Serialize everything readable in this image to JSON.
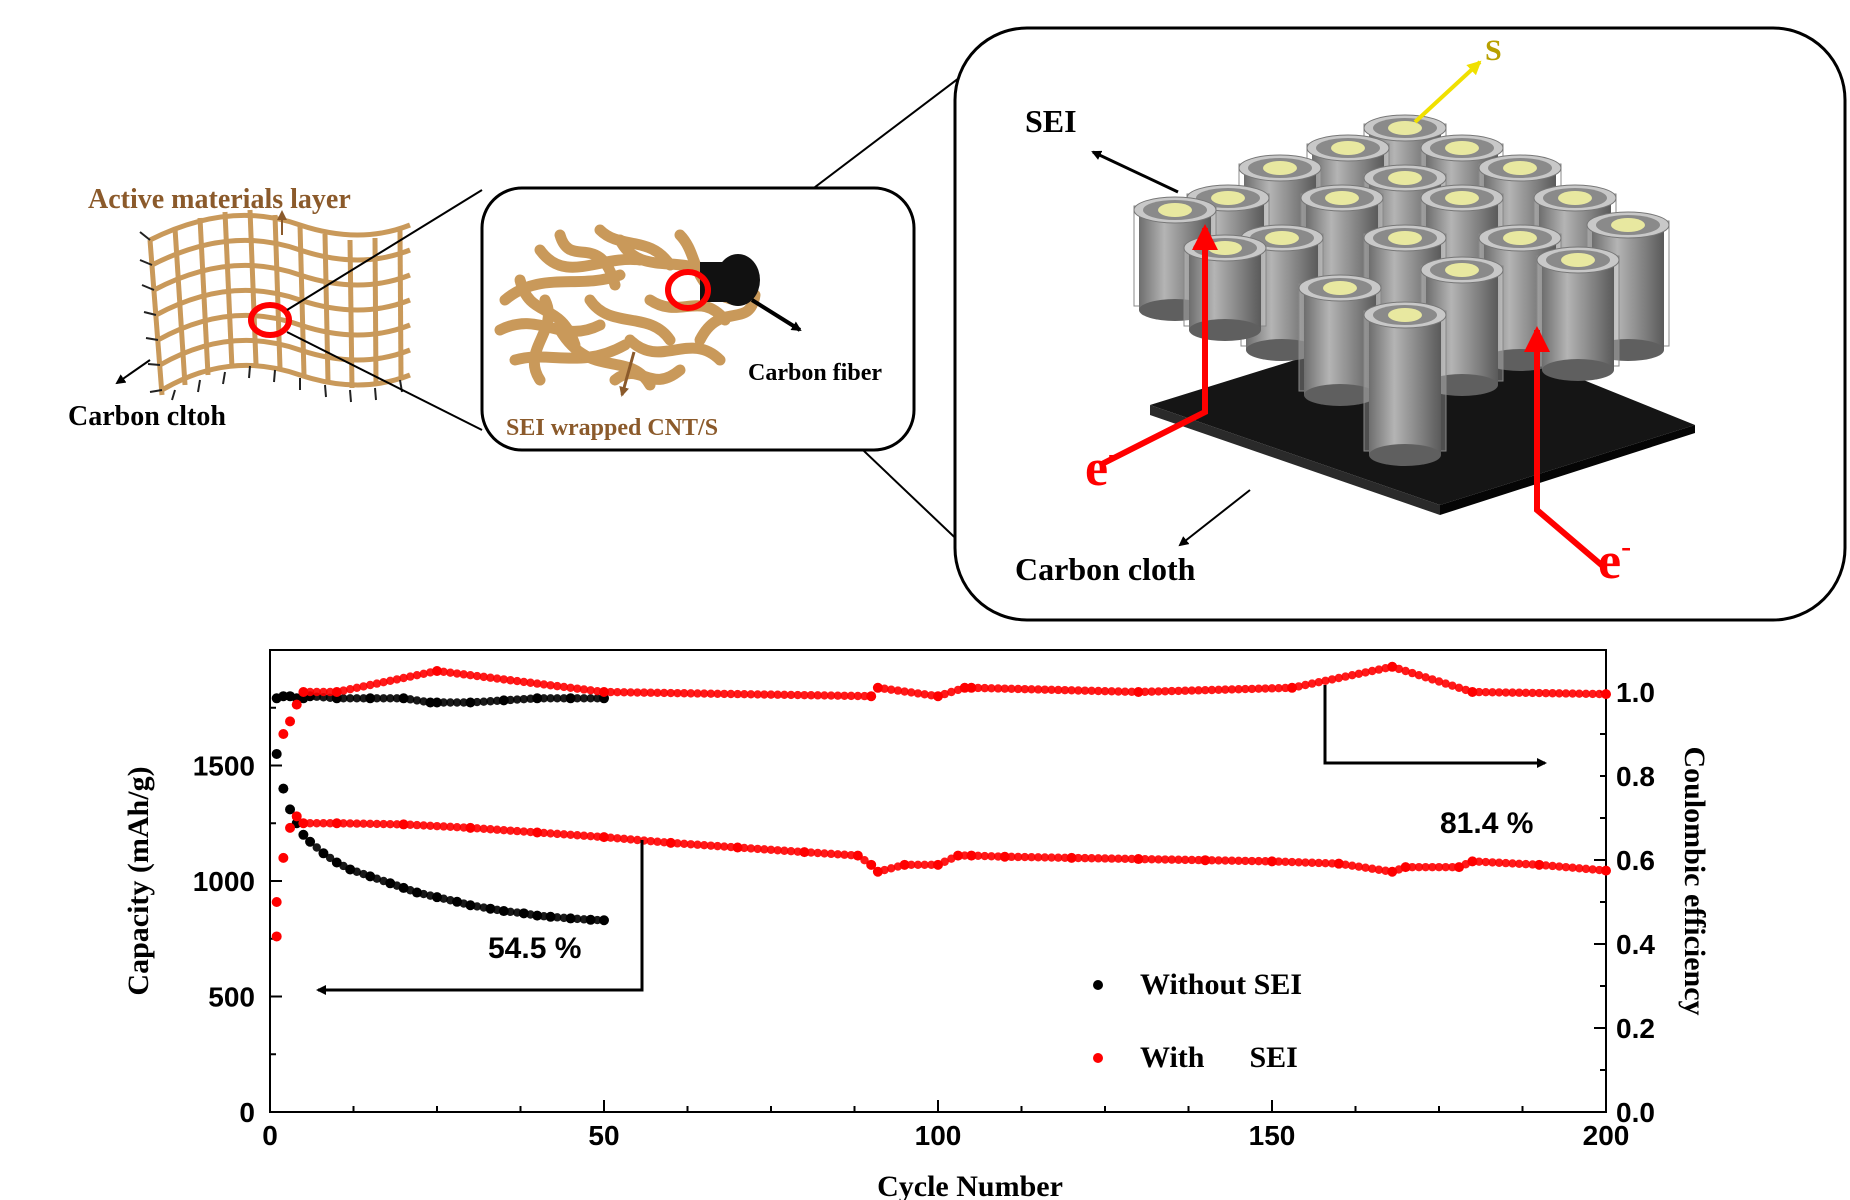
{
  "schematic": {
    "cloth_panel": {
      "active_layer_label": "Active materials layer",
      "carbon_cloth_label": "Carbon cltoh"
    },
    "fiber_panel": {
      "sei_cnt_label": "SEI wrapped CNT/S",
      "carbon_fiber_label": "Carbon fiber"
    },
    "array_panel": {
      "sulfur_label": "S",
      "sei_label": "SEI",
      "electron_label": "e",
      "electron_sup": "-",
      "carbon_cloth_label": "Carbon cloth"
    },
    "colors": {
      "fiber_brown": "#c9995a",
      "highlight_red": "#ff0000",
      "sulfur_yellow": "#e8e8a0",
      "pillar_gray": "#9a9a9a",
      "base_black": "#1a1a1a"
    }
  },
  "chart_data": {
    "type": "scatter",
    "xlabel": "Cycle Number",
    "ylabel": "Capacity (mAh/g)",
    "y2label": "Coulombic efficiency",
    "xlim": [
      0,
      200
    ],
    "ylim": [
      0,
      2000
    ],
    "y2lim": [
      0,
      1.1
    ],
    "xticks": [
      0,
      50,
      100,
      150,
      200
    ],
    "yticks": [
      0,
      500,
      1000,
      1500
    ],
    "y2ticks": [
      0.0,
      0.2,
      0.4,
      0.6,
      0.8,
      1.0
    ],
    "xtick_labels": [
      "0",
      "50",
      "100",
      "150",
      "200"
    ],
    "ytick_labels": [
      "0",
      "500",
      "1000",
      "1500"
    ],
    "y2tick_labels": [
      "0.0",
      "0.2",
      "0.4",
      "0.6",
      "0.8",
      "1.0"
    ],
    "legend": {
      "position": "bottom-center",
      "entries": [
        {
          "name": "Without SEI",
          "color": "#000000"
        },
        {
          "name": "With      SEI",
          "color": "#ff0000"
        }
      ]
    },
    "annotations": {
      "retention_without": "54.5 %",
      "retention_with": "81.4 %"
    },
    "series": [
      {
        "name": "Without SEI capacity",
        "axis": "left",
        "color": "#000000",
        "x": [
          1,
          2,
          3,
          4,
          5,
          6,
          8,
          10,
          12,
          15,
          18,
          20,
          22,
          25,
          28,
          30,
          33,
          35,
          38,
          40,
          42,
          45,
          48,
          50
        ],
        "y": [
          1550,
          1400,
          1310,
          1250,
          1200,
          1170,
          1120,
          1080,
          1050,
          1020,
          990,
          970,
          950,
          930,
          910,
          895,
          880,
          870,
          860,
          850,
          845,
          838,
          832,
          830
        ]
      },
      {
        "name": "With SEI capacity",
        "axis": "left",
        "color": "#ff0000",
        "x": [
          1,
          2,
          3,
          4,
          5,
          10,
          20,
          30,
          40,
          50,
          60,
          70,
          80,
          88,
          90,
          91,
          95,
          100,
          103,
          105,
          110,
          120,
          130,
          140,
          150,
          160,
          168,
          170,
          178,
          180,
          190,
          200
        ],
        "y": [
          760,
          1100,
          1230,
          1280,
          1250,
          1250,
          1245,
          1230,
          1210,
          1190,
          1165,
          1145,
          1125,
          1110,
          1070,
          1040,
          1070,
          1070,
          1110,
          1110,
          1105,
          1100,
          1095,
          1090,
          1085,
          1075,
          1040,
          1060,
          1060,
          1085,
          1070,
          1045
        ]
      },
      {
        "name": "Without SEI efficiency",
        "axis": "right",
        "color": "#000000",
        "x": [
          1,
          2,
          3,
          4,
          5,
          6,
          10,
          15,
          20,
          24,
          25,
          30,
          35,
          40,
          45,
          50
        ],
        "y": [
          0.985,
          0.99,
          0.99,
          0.985,
          0.985,
          0.99,
          0.985,
          0.985,
          0.985,
          0.975,
          0.975,
          0.975,
          0.98,
          0.985,
          0.985,
          0.985
        ]
      },
      {
        "name": "With SEI efficiency",
        "axis": "right",
        "color": "#ff0000",
        "x": [
          1,
          2,
          3,
          4,
          5,
          10,
          25,
          50,
          90,
          91,
          100,
          104,
          105,
          130,
          153,
          168,
          180,
          200
        ],
        "y": [
          0.5,
          0.9,
          0.93,
          0.97,
          1.0,
          1.0,
          1.05,
          1.0,
          0.99,
          1.01,
          0.99,
          1.01,
          1.01,
          1.0,
          1.01,
          1.06,
          1.0,
          0.995
        ]
      }
    ]
  }
}
